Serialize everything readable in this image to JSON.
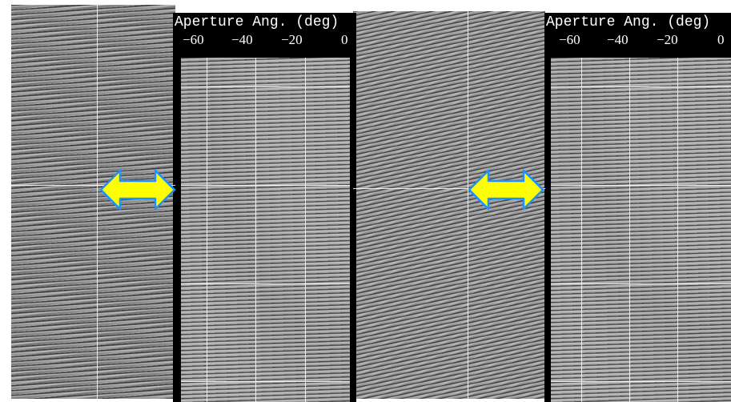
{
  "panels": [
    {
      "title": "Aperture Ang. (deg)",
      "ticks": [
        "−60",
        "−40",
        "−20",
        "0"
      ]
    },
    {
      "title": "Aperture Ang. (deg)",
      "ticks": [
        "−60",
        "−40",
        "−20",
        "0"
      ]
    }
  ],
  "colors": {
    "arrow_fill": "#ffff00",
    "arrow_outline": "#1e90ff",
    "panel_bg": "#000000",
    "grid_line": "#ffffff"
  },
  "icons": {
    "arrow_left": "double-headed-arrow-icon",
    "arrow_right": "double-headed-arrow-icon"
  }
}
